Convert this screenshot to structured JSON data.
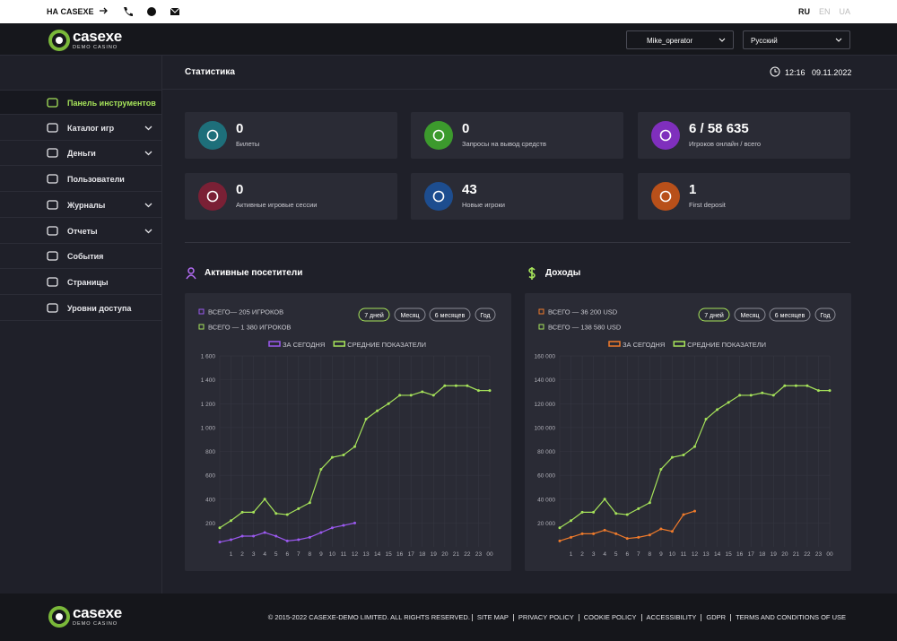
{
  "topbar": {
    "link": "НА CASEXE",
    "languages": [
      "RU",
      "EN",
      "UA"
    ]
  },
  "header": {
    "logo": "casexe",
    "logo_sub": "DEMO CASINO",
    "user": "Mike_operator",
    "language": "Русский"
  },
  "sidebar": {
    "items": [
      "Панель инструментов",
      "Каталог игр",
      "Деньги",
      "Пользователи",
      "Журналы",
      "Отчеты",
      "События",
      "Страницы",
      "Уровни доступа"
    ]
  },
  "page": {
    "title": "Статистика",
    "time": "12:16",
    "date": "09.11.2022"
  },
  "stats": [
    {
      "value": 0,
      "label": "Билеты"
    },
    {
      "value": 0,
      "label": "Запросы на вывод средств"
    },
    {
      "value": "6 / 58 635",
      "label": "Игроков онлайн / всего"
    },
    {
      "value": 0,
      "label": "Активные игровые сессии"
    },
    {
      "value": 43,
      "label": "Новые игроки"
    },
    {
      "value": 1,
      "label": "First deposit"
    }
  ],
  "charts": [
    {
      "type": "line",
      "title": "Активные посетители",
      "summary": [
        "ВСЕГО— 205 ИГРОКОВ",
        "ВСЕГО — 1 380 ИГРОКОВ"
      ],
      "periods": [
        "7 дней",
        "Месяц",
        "6 месяцев",
        "Год"
      ],
      "categories": [
        null,
        "1",
        "2",
        "3",
        "4",
        "5",
        "6",
        "7",
        "8",
        "9",
        "10",
        "11",
        "12",
        "13",
        "14",
        "15",
        "16",
        "17",
        "18",
        "19",
        "20",
        "21",
        "22",
        "23",
        "00"
      ],
      "series": [
        {
          "name": "ЗА СЕГОДНЯ",
          "color": "#9b59f0",
          "values": [
            40,
            60,
            90,
            90,
            120,
            90,
            50,
            60,
            80,
            120,
            160,
            180,
            200,
            null,
            null,
            null,
            null,
            null,
            null,
            null,
            null,
            null,
            null,
            null,
            null
          ]
        },
        {
          "name": "СРЕДНИЕ ПОКАЗАТЕЛИ",
          "color": "#a6e35a",
          "values": [
            160,
            220,
            290,
            290,
            400,
            280,
            270,
            320,
            370,
            650,
            750,
            770,
            840,
            1070,
            1140,
            1200,
            1270,
            1270,
            1300,
            1270,
            1350,
            1350,
            1350,
            1310,
            1310
          ]
        }
      ],
      "ylim": [
        0,
        1600
      ],
      "yticks": [
        200,
        400,
        600,
        800,
        {
          "value": 1000,
          "label": "1 000"
        },
        {
          "value": 1200,
          "label": "1 200"
        },
        {
          "value": 1400,
          "label": "1 400"
        },
        {
          "value": 1600,
          "label": "1 600"
        }
      ],
      "grid": true
    },
    {
      "type": "line",
      "title": "Доходы",
      "summary": [
        "ВСЕГО — 36 200 USD",
        "ВСЕГО — 138 580 USD"
      ],
      "periods": [
        "7 дней",
        "Месяц",
        "6 месяцев",
        "Год"
      ],
      "categories": [
        null,
        "1",
        "2",
        "3",
        "4",
        "5",
        "6",
        "7",
        "8",
        "9",
        "10",
        "11",
        "12",
        "13",
        "14",
        "15",
        "16",
        "17",
        "18",
        "19",
        "20",
        "21",
        "22",
        "23",
        "00"
      ],
      "series": [
        {
          "name": "ЗА СЕГОДНЯ",
          "color": "#f07b2b",
          "values": [
            5000,
            8000,
            11000,
            11000,
            14000,
            11000,
            7000,
            8000,
            10000,
            15000,
            13000,
            27000,
            30000,
            null,
            null,
            null,
            null,
            null,
            null,
            null,
            null,
            null,
            null,
            null,
            null
          ]
        },
        {
          "name": "СРЕДНИЕ ПОКАЗАТЕЛИ",
          "color": "#a6e35a",
          "values": [
            16000,
            22000,
            29000,
            29000,
            40000,
            28000,
            27000,
            32000,
            37000,
            65000,
            75000,
            77000,
            84000,
            107000,
            115000,
            121000,
            127000,
            127000,
            129000,
            127000,
            135000,
            135000,
            135000,
            131000,
            131000
          ]
        }
      ],
      "ylim": [
        0,
        160000
      ],
      "yticks": [
        {
          "value": 20000,
          "label": "20 000"
        },
        {
          "value": 40000,
          "label": "40 000"
        },
        {
          "value": 60000,
          "label": "60 000"
        },
        {
          "value": 80000,
          "label": "80 000"
        },
        {
          "value": 100000,
          "label": "100 000"
        },
        {
          "value": 120000,
          "label": "120 000"
        },
        {
          "value": 140000,
          "label": "140 000"
        },
        {
          "value": 160000,
          "label": "160 000"
        }
      ],
      "grid": true
    }
  ],
  "footer": {
    "copyright": "© 2015-2022 CASEXE-DEMO LIMITED. ALL RIGHTS RESERVED.",
    "links": [
      "SITE MAP",
      "PRIVACY POLICY",
      "COOKIE POLICY",
      "ACCESSIBILITY",
      "GDPR",
      "TERMS AND CONDITIONS OF USE"
    ]
  }
}
